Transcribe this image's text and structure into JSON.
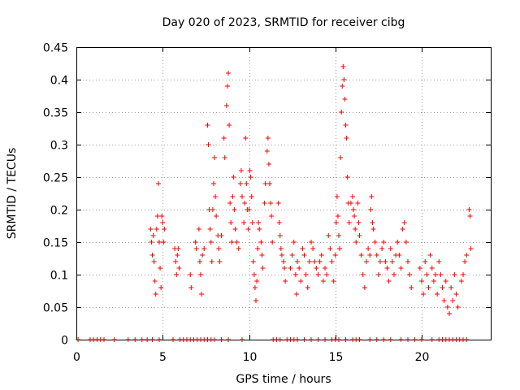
{
  "chart_data": {
    "type": "scatter",
    "title": "Day 020 of 2023, SRMTID for receiver cibg",
    "xlabel": "GPS time / hours",
    "ylabel": "SRMTID / TECUs",
    "xlim": [
      0,
      24
    ],
    "ylim": [
      0,
      0.45
    ],
    "xticks": [
      0,
      5,
      10,
      15,
      20
    ],
    "xtick_labels": [
      "0",
      "5",
      "10",
      "15",
      "20"
    ],
    "yticks": [
      0,
      0.05,
      0.1,
      0.15,
      0.2,
      0.25,
      0.3,
      0.35,
      0.4,
      0.45
    ],
    "ytick_labels": [
      "0",
      "0.05",
      "0.1",
      "0.15",
      "0.2",
      "0.25",
      "0.3",
      "0.35",
      "0.4",
      "0.45"
    ],
    "grid": true,
    "marker": "+",
    "color": "#ff0000",
    "series": [
      {
        "name": "SRMTID",
        "points": [
          [
            4.3,
            0.17
          ],
          [
            4.35,
            0.15
          ],
          [
            4.4,
            0.13
          ],
          [
            4.45,
            0.16
          ],
          [
            4.5,
            0.12
          ],
          [
            4.55,
            0.09
          ],
          [
            4.6,
            0.07
          ],
          [
            4.65,
            0.17
          ],
          [
            4.7,
            0.19
          ],
          [
            4.75,
            0.24
          ],
          [
            4.8,
            0.15
          ],
          [
            4.85,
            0.11
          ],
          [
            4.9,
            0.08
          ],
          [
            4.95,
            0.19
          ],
          [
            5.0,
            0.18
          ],
          [
            5.05,
            0.15
          ],
          [
            5.1,
            0.17
          ],
          [
            5.7,
            0.14
          ],
          [
            5.75,
            0.12
          ],
          [
            5.8,
            0.1
          ],
          [
            5.85,
            0.13
          ],
          [
            5.9,
            0.14
          ],
          [
            5.95,
            0.11
          ],
          [
            6.6,
            0.1
          ],
          [
            6.65,
            0.08
          ],
          [
            6.9,
            0.15
          ],
          [
            6.95,
            0.14
          ],
          [
            7.1,
            0.17
          ],
          [
            7.15,
            0.12
          ],
          [
            7.2,
            0.1
          ],
          [
            7.25,
            0.07
          ],
          [
            7.3,
            0.13
          ],
          [
            7.4,
            0.14
          ],
          [
            7.6,
            0.33
          ],
          [
            7.65,
            0.3
          ],
          [
            7.7,
            0.2
          ],
          [
            7.75,
            0.17
          ],
          [
            7.8,
            0.15
          ],
          [
            7.85,
            0.12
          ],
          [
            7.9,
            0.2
          ],
          [
            7.95,
            0.24
          ],
          [
            8.0,
            0.28
          ],
          [
            8.05,
            0.22
          ],
          [
            8.1,
            0.19
          ],
          [
            8.2,
            0.16
          ],
          [
            8.25,
            0.14
          ],
          [
            8.3,
            0.12
          ],
          [
            8.4,
            0.16
          ],
          [
            8.55,
            0.31
          ],
          [
            8.6,
            0.28
          ],
          [
            8.7,
            0.36
          ],
          [
            8.75,
            0.39
          ],
          [
            8.8,
            0.41
          ],
          [
            8.85,
            0.33
          ],
          [
            8.9,
            0.21
          ],
          [
            8.95,
            0.18
          ],
          [
            9.0,
            0.15
          ],
          [
            9.05,
            0.22
          ],
          [
            9.1,
            0.25
          ],
          [
            9.15,
            0.2
          ],
          [
            9.2,
            0.17
          ],
          [
            9.3,
            0.15
          ],
          [
            9.4,
            0.14
          ],
          [
            9.5,
            0.24
          ],
          [
            9.55,
            0.26
          ],
          [
            9.6,
            0.22
          ],
          [
            9.7,
            0.18
          ],
          [
            9.75,
            0.21
          ],
          [
            9.8,
            0.31
          ],
          [
            9.85,
            0.24
          ],
          [
            9.9,
            0.2
          ],
          [
            9.95,
            0.17
          ],
          [
            10.0,
            0.2
          ],
          [
            10.05,
            0.26
          ],
          [
            10.1,
            0.25
          ],
          [
            10.15,
            0.22
          ],
          [
            10.2,
            0.18
          ],
          [
            10.25,
            0.12
          ],
          [
            10.3,
            0.1
          ],
          [
            10.35,
            0.08
          ],
          [
            10.4,
            0.06
          ],
          [
            10.45,
            0.09
          ],
          [
            10.5,
            0.14
          ],
          [
            10.55,
            0.18
          ],
          [
            10.6,
            0.17
          ],
          [
            10.7,
            0.15
          ],
          [
            10.75,
            0.13
          ],
          [
            10.8,
            0.11
          ],
          [
            10.9,
            0.21
          ],
          [
            10.95,
            0.24
          ],
          [
            11.05,
            0.29
          ],
          [
            11.1,
            0.31
          ],
          [
            11.15,
            0.27
          ],
          [
            11.2,
            0.24
          ],
          [
            11.25,
            0.21
          ],
          [
            11.3,
            0.19
          ],
          [
            11.35,
            0.15
          ],
          [
            11.7,
            0.21
          ],
          [
            11.75,
            0.18
          ],
          [
            11.8,
            0.16
          ],
          [
            11.85,
            0.14
          ],
          [
            11.9,
            0.13
          ],
          [
            12.0,
            0.12
          ],
          [
            12.05,
            0.11
          ],
          [
            12.1,
            0.09
          ],
          [
            12.4,
            0.11
          ],
          [
            12.5,
            0.13
          ],
          [
            12.6,
            0.15
          ],
          [
            12.7,
            0.1
          ],
          [
            12.75,
            0.07
          ],
          [
            12.8,
            0.12
          ],
          [
            12.9,
            0.11
          ],
          [
            13.0,
            0.09
          ],
          [
            13.1,
            0.14
          ],
          [
            13.2,
            0.13
          ],
          [
            13.3,
            0.1
          ],
          [
            13.4,
            0.08
          ],
          [
            13.5,
            0.12
          ],
          [
            13.6,
            0.15
          ],
          [
            13.7,
            0.14
          ],
          [
            13.8,
            0.12
          ],
          [
            13.9,
            0.11
          ],
          [
            14.0,
            0.1
          ],
          [
            14.1,
            0.12
          ],
          [
            14.2,
            0.13
          ],
          [
            14.3,
            0.09
          ],
          [
            14.4,
            0.11
          ],
          [
            14.5,
            0.1
          ],
          [
            14.6,
            0.16
          ],
          [
            14.7,
            0.14
          ],
          [
            14.8,
            0.12
          ],
          [
            14.9,
            0.09
          ],
          [
            15.0,
            0.13
          ],
          [
            15.05,
            0.18
          ],
          [
            15.1,
            0.22
          ],
          [
            15.15,
            0.19
          ],
          [
            15.2,
            0.16
          ],
          [
            15.25,
            0.14
          ],
          [
            15.3,
            0.28
          ],
          [
            15.35,
            0.35
          ],
          [
            15.4,
            0.39
          ],
          [
            15.45,
            0.42
          ],
          [
            15.5,
            0.4
          ],
          [
            15.55,
            0.37
          ],
          [
            15.6,
            0.33
          ],
          [
            15.65,
            0.31
          ],
          [
            15.7,
            0.25
          ],
          [
            15.75,
            0.21
          ],
          [
            15.8,
            0.18
          ],
          [
            15.9,
            0.21
          ],
          [
            16.0,
            0.22
          ],
          [
            16.05,
            0.2
          ],
          [
            16.1,
            0.19
          ],
          [
            16.15,
            0.17
          ],
          [
            16.2,
            0.15
          ],
          [
            16.3,
            0.21
          ],
          [
            16.35,
            0.18
          ],
          [
            16.4,
            0.16
          ],
          [
            16.5,
            0.13
          ],
          [
            16.6,
            0.1
          ],
          [
            16.7,
            0.08
          ],
          [
            16.8,
            0.12
          ],
          [
            16.9,
            0.14
          ],
          [
            17.0,
            0.13
          ],
          [
            17.05,
            0.2
          ],
          [
            17.1,
            0.22
          ],
          [
            17.15,
            0.18
          ],
          [
            17.2,
            0.17
          ],
          [
            17.3,
            0.15
          ],
          [
            17.4,
            0.13
          ],
          [
            17.5,
            0.1
          ],
          [
            17.6,
            0.12
          ],
          [
            17.7,
            0.14
          ],
          [
            17.8,
            0.15
          ],
          [
            17.9,
            0.12
          ],
          [
            18.0,
            0.11
          ],
          [
            18.1,
            0.09
          ],
          [
            18.2,
            0.14
          ],
          [
            18.3,
            0.12
          ],
          [
            18.4,
            0.1
          ],
          [
            18.5,
            0.13
          ],
          [
            18.6,
            0.15
          ],
          [
            18.7,
            0.13
          ],
          [
            18.8,
            0.11
          ],
          [
            18.9,
            0.17
          ],
          [
            19.0,
            0.18
          ],
          [
            19.1,
            0.15
          ],
          [
            19.2,
            0.12
          ],
          [
            19.3,
            0.1
          ],
          [
            19.4,
            0.08
          ],
          [
            19.9,
            0.11
          ],
          [
            20.0,
            0.09
          ],
          [
            20.1,
            0.07
          ],
          [
            20.2,
            0.12
          ],
          [
            20.3,
            0.1
          ],
          [
            20.4,
            0.08
          ],
          [
            20.5,
            0.13
          ],
          [
            20.6,
            0.11
          ],
          [
            20.7,
            0.09
          ],
          [
            20.8,
            0.1
          ],
          [
            20.9,
            0.07
          ],
          [
            21.0,
            0.12
          ],
          [
            21.1,
            0.1
          ],
          [
            21.2,
            0.08
          ],
          [
            21.3,
            0.06
          ],
          [
            21.4,
            0.09
          ],
          [
            21.5,
            0.05
          ],
          [
            21.6,
            0.04
          ],
          [
            21.7,
            0.08
          ],
          [
            21.8,
            0.06
          ],
          [
            21.9,
            0.1
          ],
          [
            22.0,
            0.07
          ],
          [
            22.1,
            0.05
          ],
          [
            22.3,
            0.09
          ],
          [
            22.4,
            0.1
          ],
          [
            22.5,
            0.12
          ],
          [
            22.6,
            0.13
          ],
          [
            22.75,
            0.2
          ],
          [
            22.8,
            0.19
          ],
          [
            22.85,
            0.14
          ],
          [
            0.1,
            0
          ],
          [
            0.8,
            0
          ],
          [
            1.0,
            0
          ],
          [
            1.2,
            0
          ],
          [
            1.4,
            0
          ],
          [
            1.6,
            0
          ],
          [
            2.2,
            0
          ],
          [
            3.0,
            0
          ],
          [
            3.4,
            0
          ],
          [
            3.8,
            0
          ],
          [
            4.1,
            0
          ],
          [
            4.4,
            0
          ],
          [
            4.8,
            0
          ],
          [
            5.6,
            0
          ],
          [
            6.0,
            0
          ],
          [
            6.2,
            0
          ],
          [
            6.4,
            0
          ],
          [
            6.6,
            0
          ],
          [
            6.8,
            0
          ],
          [
            7.0,
            0
          ],
          [
            7.2,
            0
          ],
          [
            7.4,
            0
          ],
          [
            7.6,
            0
          ],
          [
            7.8,
            0
          ],
          [
            8.0,
            0
          ],
          [
            8.4,
            0
          ],
          [
            8.8,
            0
          ],
          [
            9.6,
            0
          ],
          [
            11.4,
            0
          ],
          [
            11.6,
            0
          ],
          [
            11.8,
            0
          ],
          [
            12.2,
            0
          ],
          [
            12.4,
            0
          ],
          [
            12.6,
            0
          ],
          [
            12.8,
            0
          ],
          [
            13.2,
            0
          ],
          [
            13.6,
            0
          ],
          [
            14.0,
            0
          ],
          [
            14.4,
            0
          ],
          [
            14.8,
            0
          ],
          [
            15.0,
            0
          ],
          [
            15.2,
            0
          ],
          [
            15.6,
            0
          ],
          [
            16.0,
            0
          ],
          [
            16.2,
            0
          ],
          [
            16.4,
            0
          ],
          [
            17.0,
            0
          ],
          [
            17.4,
            0
          ],
          [
            17.8,
            0
          ],
          [
            18.2,
            0
          ],
          [
            18.8,
            0
          ],
          [
            19.2,
            0
          ],
          [
            19.6,
            0
          ],
          [
            20.0,
            0
          ],
          [
            20.6,
            0
          ],
          [
            21.0,
            0
          ],
          [
            21.2,
            0
          ],
          [
            21.4,
            0
          ],
          [
            21.6,
            0
          ],
          [
            21.8,
            0
          ],
          [
            22.0,
            0
          ],
          [
            22.2,
            0
          ],
          [
            22.4,
            0
          ],
          [
            22.6,
            0
          ]
        ]
      }
    ]
  }
}
